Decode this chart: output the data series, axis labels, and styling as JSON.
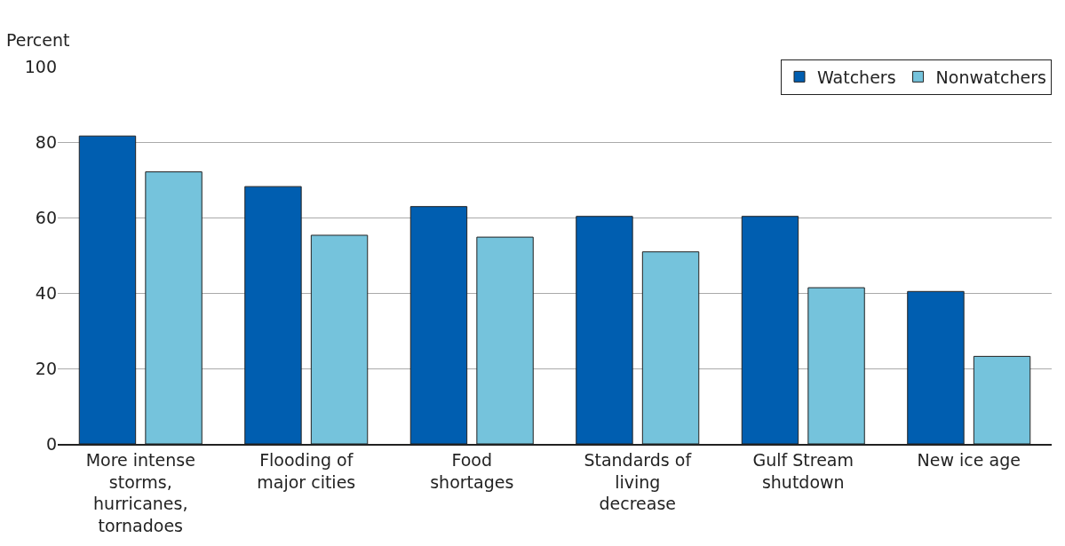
{
  "chart_data": {
    "type": "bar",
    "ylabel": "Percent",
    "categories": [
      "More intense storms, hurricanes, tornadoes",
      "Flooding of major cities",
      "Food shortages",
      "Standards of living decrease",
      "Gulf Stream shutdown",
      "New ice age"
    ],
    "series": [
      {
        "name": "Watchers",
        "color": "#005eb0",
        "values": [
          81.6,
          68.2,
          62.9,
          60.3,
          60.3,
          40.4
        ]
      },
      {
        "name": "Nonwatchers",
        "color": "#75c3dc",
        "values": [
          72.1,
          55.3,
          54.8,
          50.9,
          41.4,
          23.2
        ]
      }
    ],
    "ylim": [
      0,
      100
    ],
    "yticks": [
      0,
      20,
      40,
      60,
      80,
      100
    ],
    "grid": "y",
    "legend": "top right"
  }
}
